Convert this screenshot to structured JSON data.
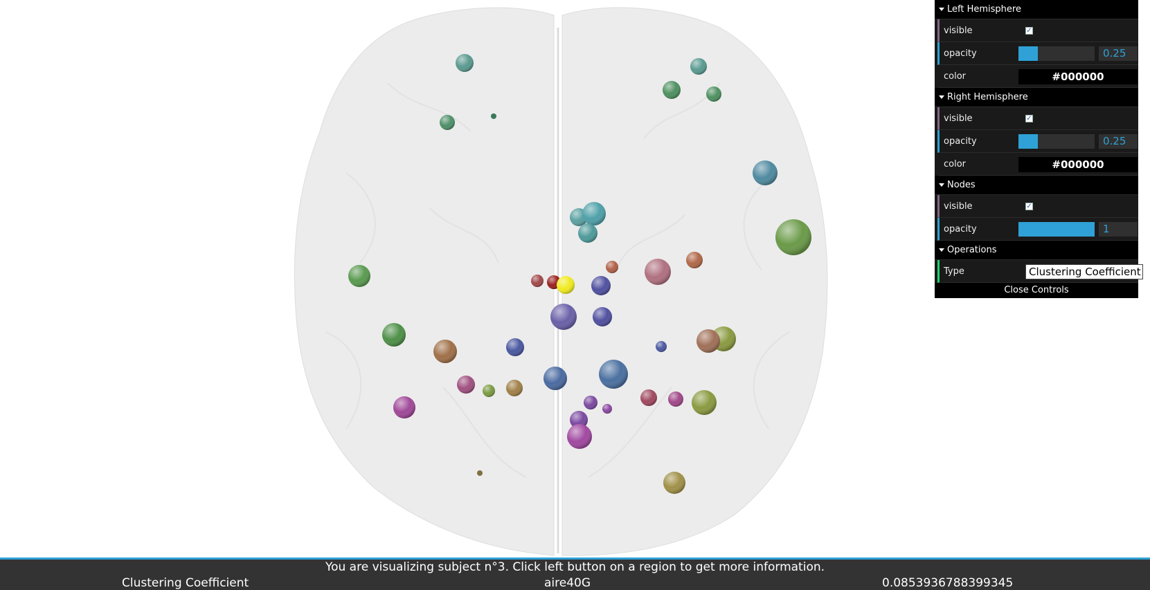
{
  "gui": {
    "folders": [
      {
        "title": "Left Hemisphere",
        "visible_label": "visible",
        "visible_checked": true,
        "opacity_label": "opacity",
        "opacity_value": "0.25",
        "color_label": "color",
        "color_value": "#000000"
      },
      {
        "title": "Right Hemisphere",
        "visible_label": "visible",
        "visible_checked": true,
        "opacity_label": "opacity",
        "opacity_value": "0.25",
        "color_label": "color",
        "color_value": "#000000"
      },
      {
        "title": "Nodes",
        "visible_label": "visible",
        "visible_checked": true,
        "opacity_label": "opacity",
        "opacity_value": "1"
      },
      {
        "title": "Operations",
        "type_label": "Type",
        "type_value": "Clustering Coefficient"
      }
    ],
    "close_label": "Close Controls",
    "slider_max": 1
  },
  "info": {
    "message": "You are visualizing subject n°3. Click left button on a region to get more information.",
    "measure": "Clustering Coefficient",
    "region": "aire40G",
    "value": "0.0853936788399345"
  },
  "colors": {
    "accent": "#2fa1d6",
    "panel_bg": "#1a1a1a",
    "bar_bg": "#333333",
    "brain_fill": "#ededed",
    "highlight_node": "#f0ea20"
  }
}
